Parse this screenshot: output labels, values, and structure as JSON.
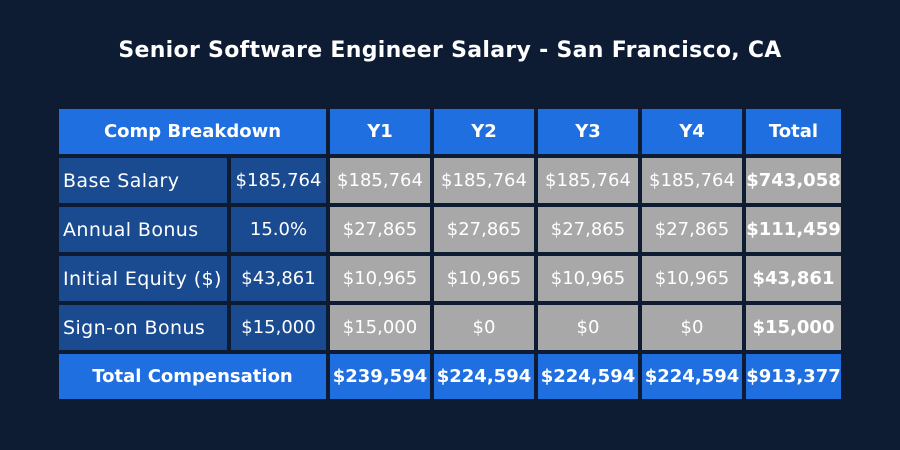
{
  "title": "Senior Software Engineer Salary - San Francisco, CA",
  "header": {
    "breakdown": "Comp Breakdown",
    "y1": "Y1",
    "y2": "Y2",
    "y3": "Y3",
    "y4": "Y4",
    "total": "Total"
  },
  "rows": [
    {
      "label": "Base Salary",
      "param": "$185,764",
      "values": [
        "$185,764",
        "$185,764",
        "$185,764",
        "$185,764"
      ],
      "total": "$743,058"
    },
    {
      "label": "Annual Bonus",
      "param": "15.0%",
      "values": [
        "$27,865",
        "$27,865",
        "$27,865",
        "$27,865"
      ],
      "total": "$111,459"
    },
    {
      "label": "Initial Equity ($)",
      "param": "$43,861",
      "values": [
        "$10,965",
        "$10,965",
        "$10,965",
        "$10,965"
      ],
      "total": "$43,861"
    },
    {
      "label": "Sign-on Bonus",
      "param": "$15,000",
      "values": [
        "$15,000",
        "$0",
        "$0",
        "$0"
      ],
      "total": "$15,000"
    }
  ],
  "footer": {
    "label": "Total Compensation",
    "values": [
      "$239,594",
      "$224,594",
      "$224,594",
      "$224,594"
    ],
    "total": "$913,377"
  },
  "colors": {
    "background": "#0d1b33",
    "header_blue": "#1f6fe0",
    "label_blue": "#1a4b91",
    "value_gray": "#a8a8a8"
  }
}
